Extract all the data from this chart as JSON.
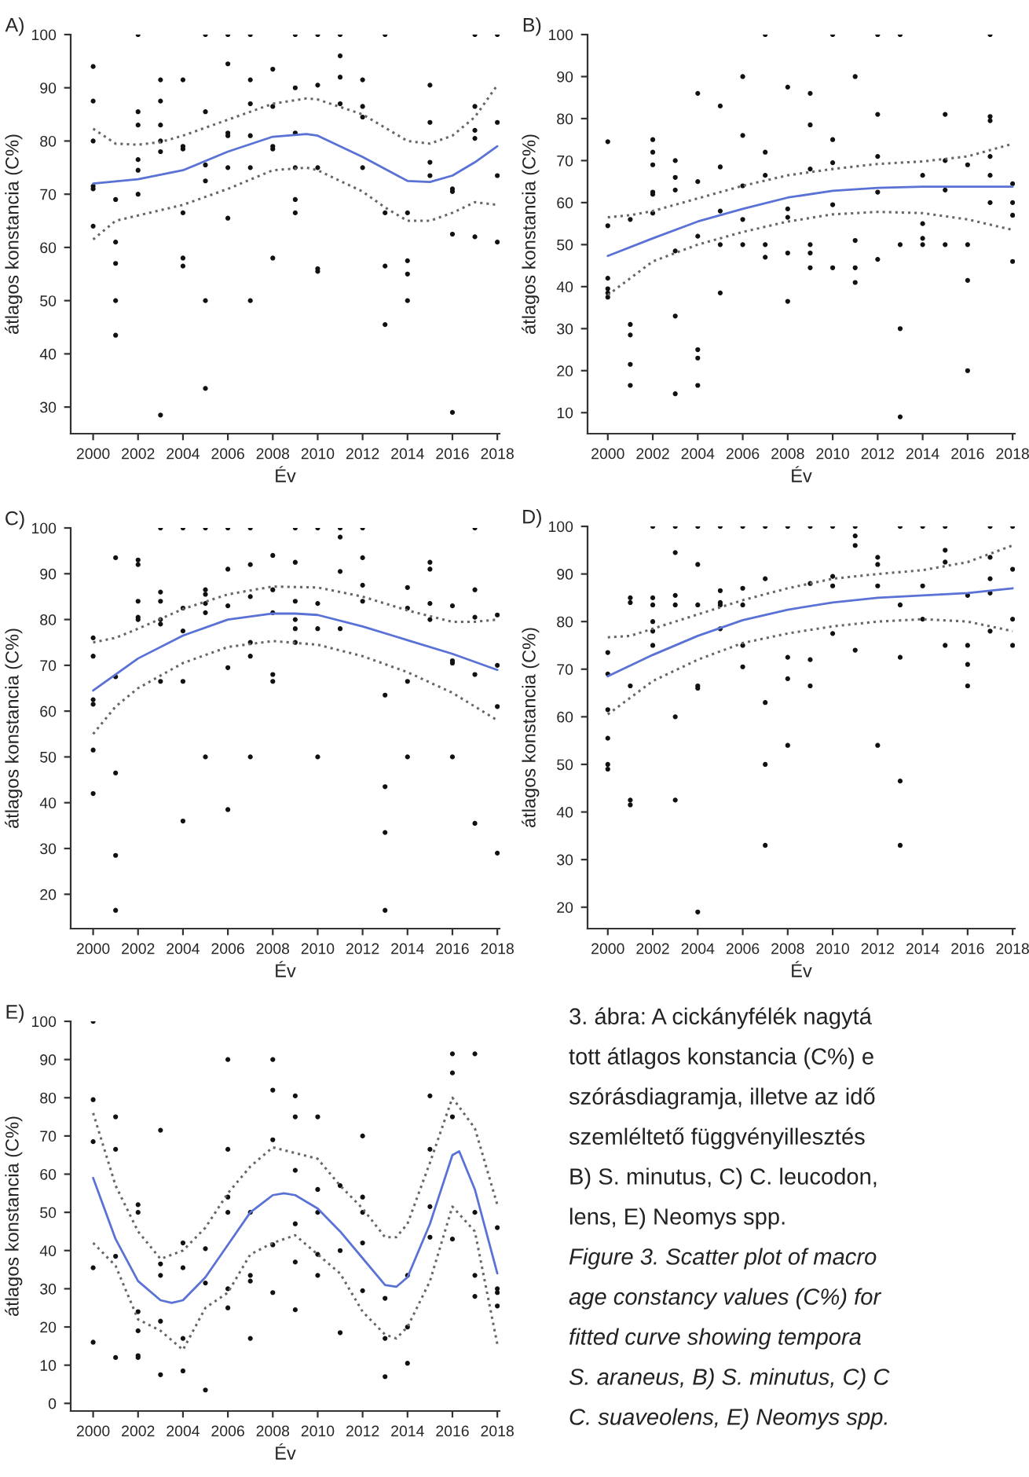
{
  "chart_data": [
    {
      "type": "scatter",
      "title": "A)",
      "xlabel": "Év",
      "ylabel": "átlagos konstancia (C%)",
      "xlim": [
        1999,
        2018.1
      ],
      "ylim": [
        25,
        100
      ],
      "xticks": [
        2000,
        2002,
        2004,
        2006,
        2008,
        2010,
        2012,
        2014,
        2016,
        2018
      ],
      "yticks": [
        30,
        40,
        50,
        60,
        70,
        80,
        90,
        100
      ],
      "series": [
        {
          "type": "scatter",
          "marker": "circle",
          "color": "#111111",
          "x": [
            2000,
            2000,
            2000,
            2000,
            2000,
            2000,
            2001,
            2001,
            2001,
            2001,
            2001,
            2002,
            2002,
            2002,
            2002,
            2002,
            2002,
            2003,
            2003,
            2003,
            2003,
            2003,
            2003,
            2004,
            2004,
            2004,
            2004,
            2004,
            2004,
            2005,
            2005,
            2005,
            2005,
            2005,
            2005,
            2006,
            2006,
            2006,
            2006,
            2006,
            2006,
            2007,
            2007,
            2007,
            2007,
            2007,
            2007,
            2008,
            2008,
            2008,
            2008,
            2008,
            2009,
            2009,
            2009,
            2009,
            2009,
            2009,
            2010,
            2010,
            2010,
            2010,
            2010,
            2011,
            2011,
            2011,
            2011,
            2012,
            2012,
            2012,
            2012,
            2013,
            2013,
            2013,
            2013,
            2014,
            2014,
            2014,
            2014,
            2015,
            2015,
            2015,
            2015,
            2016,
            2016,
            2016,
            2016,
            2017,
            2017,
            2017,
            2017,
            2017,
            2018,
            2018,
            2018,
            2018
          ],
          "values": [
            94,
            87.5,
            80,
            71.5,
            71,
            64,
            69,
            61,
            57,
            50,
            43.5,
            100,
            85.5,
            83,
            76.5,
            74.5,
            70,
            91.5,
            87.5,
            83,
            80,
            78,
            28.5,
            91.5,
            79,
            78.5,
            66.5,
            58,
            56.5,
            100,
            85.5,
            75.5,
            72.5,
            50,
            33.5,
            100,
            94.5,
            81.5,
            81,
            75,
            65.5,
            100,
            91.5,
            87,
            81,
            75,
            50,
            93.5,
            86.5,
            79,
            78.5,
            58,
            100,
            90,
            81.5,
            75,
            69,
            66.5,
            100,
            90.5,
            75,
            56,
            55.5,
            100,
            96,
            92,
            87,
            91.5,
            86.5,
            84.5,
            75,
            100,
            66.5,
            56.5,
            45.5,
            66.5,
            57.5,
            55,
            50,
            90.5,
            83.5,
            76,
            73.5,
            71,
            70.5,
            62.5,
            29,
            100,
            86.5,
            82,
            80.5,
            62,
            100,
            83.5,
            73.5,
            61
          ]
        },
        {
          "type": "line",
          "color": "#5a72d6",
          "line_style": "solid",
          "x": [
            2000,
            2002,
            2004,
            2006,
            2008,
            2009.5,
            2010,
            2012,
            2014,
            2015,
            2016,
            2017,
            2018
          ],
          "values": [
            72,
            72.8,
            74.5,
            78,
            80.8,
            81.3,
            81,
            77,
            72.5,
            72.3,
            73.5,
            76,
            79
          ]
        },
        {
          "type": "line",
          "color": "#666666",
          "line_style": "dotted",
          "x": [
            2000,
            2001,
            2002,
            2003,
            2004,
            2006,
            2008,
            2009.5,
            2010,
            2012,
            2014,
            2015,
            2016,
            2017,
            2018
          ],
          "values": [
            82.3,
            79.5,
            79.3,
            79.8,
            81,
            84,
            87,
            88,
            87.8,
            85,
            80,
            79.5,
            81,
            84.5,
            90.5
          ]
        },
        {
          "type": "line",
          "color": "#666666",
          "line_style": "dotted",
          "x": [
            2000,
            2001,
            2002,
            2004,
            2006,
            2008,
            2009.5,
            2010,
            2012,
            2013,
            2014,
            2015,
            2016,
            2017,
            2018
          ],
          "values": [
            61.5,
            65,
            66,
            68,
            71,
            74.5,
            75,
            74.5,
            70.5,
            67.5,
            65,
            65,
            66.5,
            68.5,
            68
          ]
        }
      ]
    },
    {
      "type": "scatter",
      "title": "B)",
      "xlabel": "Év",
      "ylabel": "átlagos konstancia (C%)",
      "xlim": [
        1999.1,
        2018.1
      ],
      "ylim": [
        5,
        100
      ],
      "xticks": [
        2000,
        2002,
        2004,
        2006,
        2008,
        2010,
        2012,
        2014,
        2016,
        2018
      ],
      "yticks": [
        10,
        20,
        30,
        40,
        50,
        60,
        70,
        80,
        90,
        100
      ],
      "series": [
        {
          "type": "scatter",
          "marker": "circle",
          "color": "#111111",
          "x": [
            2000,
            2000,
            2000,
            2000,
            2000,
            2000,
            2001,
            2001,
            2001,
            2001,
            2001,
            2002,
            2002,
            2002,
            2002,
            2002,
            2002,
            2003,
            2003,
            2003,
            2003,
            2003,
            2003,
            2004,
            2004,
            2004,
            2004,
            2004,
            2004,
            2005,
            2005,
            2005,
            2005,
            2005,
            2006,
            2006,
            2006,
            2006,
            2006,
            2007,
            2007,
            2007,
            2007,
            2007,
            2008,
            2008,
            2008,
            2008,
            2008,
            2009,
            2009,
            2009,
            2009,
            2009,
            2009,
            2010,
            2010,
            2010,
            2010,
            2010,
            2011,
            2011,
            2011,
            2011,
            2012,
            2012,
            2012,
            2012,
            2012,
            2013,
            2013,
            2013,
            2013,
            2014,
            2014,
            2014,
            2014,
            2015,
            2015,
            2015,
            2015,
            2016,
            2016,
            2016,
            2016,
            2017,
            2017,
            2017,
            2017,
            2017,
            2017,
            2018,
            2018,
            2018,
            2018
          ],
          "values": [
            74.5,
            54.5,
            42,
            39.5,
            38.5,
            37.5,
            56,
            31,
            28.5,
            21.5,
            16.5,
            75,
            72,
            69,
            62.5,
            62,
            57.5,
            70,
            66,
            63,
            48.5,
            33,
            14.5,
            86,
            65,
            52,
            25,
            23,
            16.5,
            83,
            68.5,
            58,
            50,
            38.5,
            90,
            76,
            64,
            56,
            50,
            100,
            72,
            66.5,
            50,
            47,
            87.5,
            58.5,
            56.5,
            48,
            36.5,
            86,
            78.5,
            68,
            50,
            48,
            44.5,
            100,
            75,
            69.5,
            59.5,
            44.5,
            90,
            51,
            44.5,
            41,
            100,
            81,
            71,
            62.5,
            46.5,
            100,
            50,
            30,
            9,
            66.5,
            55,
            51.5,
            50,
            81,
            70,
            63,
            50,
            69,
            50,
            41.5,
            20,
            100,
            80.5,
            79.5,
            71,
            66.5,
            60,
            64.5,
            60,
            57,
            46
          ]
        },
        {
          "type": "line",
          "color": "#5a72d6",
          "line_style": "solid",
          "x": [
            2000,
            2002,
            2004,
            2006,
            2008,
            2010,
            2012,
            2014,
            2016,
            2018
          ],
          "values": [
            47.3,
            51.5,
            55.5,
            58.5,
            61.2,
            62.8,
            63.5,
            63.8,
            63.8,
            63.8
          ]
        },
        {
          "type": "line",
          "color": "#666666",
          "line_style": "dotted",
          "x": [
            2000,
            2001,
            2002,
            2004,
            2006,
            2008,
            2010,
            2012,
            2014,
            2016,
            2018
          ],
          "values": [
            56.5,
            57,
            58,
            61,
            64,
            66.5,
            68,
            69.2,
            69.8,
            71,
            74
          ]
        },
        {
          "type": "line",
          "color": "#666666",
          "line_style": "dotted",
          "x": [
            2000,
            2001,
            2002,
            2004,
            2006,
            2008,
            2010,
            2012,
            2014,
            2016,
            2018
          ],
          "values": [
            38,
            42,
            46,
            50,
            53,
            55.5,
            57.2,
            57.8,
            57.5,
            56,
            53.5
          ]
        }
      ]
    },
    {
      "type": "scatter",
      "title": "C)",
      "xlabel": "Év",
      "ylabel": "átlagos konstancia (C%)",
      "xlim": [
        1999,
        2018.1
      ],
      "ylim": [
        12.5,
        100
      ],
      "xticks": [
        2000,
        2002,
        2004,
        2006,
        2008,
        2010,
        2012,
        2014,
        2016,
        2018
      ],
      "yticks": [
        20,
        30,
        40,
        50,
        60,
        70,
        80,
        90,
        100
      ],
      "series": [
        {
          "type": "scatter",
          "marker": "circle",
          "color": "#111111",
          "x": [
            2000,
            2000,
            2000,
            2000,
            2000,
            2000,
            2001,
            2001,
            2001,
            2001,
            2001,
            2002,
            2002,
            2002,
            2002,
            2002,
            2003,
            2003,
            2003,
            2003,
            2003,
            2003,
            2004,
            2004,
            2004,
            2004,
            2004,
            2005,
            2005,
            2005,
            2005,
            2005,
            2005,
            2006,
            2006,
            2006,
            2006,
            2006,
            2007,
            2007,
            2007,
            2007,
            2007,
            2007,
            2008,
            2008,
            2008,
            2008,
            2008,
            2009,
            2009,
            2009,
            2009,
            2009,
            2009,
            2010,
            2010,
            2010,
            2010,
            2011,
            2011,
            2011,
            2011,
            2012,
            2012,
            2012,
            2012,
            2013,
            2013,
            2013,
            2013,
            2014,
            2014,
            2014,
            2014,
            2015,
            2015,
            2015,
            2015,
            2016,
            2016,
            2016,
            2016,
            2017,
            2017,
            2017,
            2017,
            2017,
            2018,
            2018,
            2018,
            2018
          ],
          "values": [
            76,
            72,
            62.5,
            61.5,
            51.5,
            42,
            93.5,
            67.5,
            46.5,
            28.5,
            16.5,
            93,
            92,
            84,
            80.5,
            80,
            100,
            86,
            84,
            80,
            79,
            66.5,
            100,
            82.5,
            77.5,
            66.5,
            36,
            100,
            86.5,
            85.5,
            83.5,
            81.5,
            50,
            100,
            91,
            83,
            69.5,
            38.5,
            100,
            92,
            85,
            75,
            72,
            50,
            94,
            86.5,
            81.5,
            68,
            66.5,
            100,
            92.5,
            84,
            80,
            78,
            75,
            100,
            83.5,
            78,
            50,
            100,
            98,
            90.5,
            78,
            100,
            93.5,
            87.5,
            84,
            63.5,
            43.5,
            33.5,
            16.5,
            87,
            82.5,
            66.5,
            50,
            92.5,
            91,
            83.5,
            80,
            83,
            71,
            70.5,
            50,
            100,
            86.5,
            80.5,
            68,
            35.5,
            81,
            70,
            61,
            29
          ]
        },
        {
          "type": "line",
          "color": "#5a72d6",
          "line_style": "solid",
          "x": [
            2000,
            2002,
            2004,
            2006,
            2008,
            2009,
            2010,
            2012,
            2014,
            2016,
            2018
          ],
          "values": [
            64.5,
            71.5,
            76.5,
            80,
            81.3,
            81.3,
            81,
            78.5,
            75.5,
            72.5,
            69
          ]
        },
        {
          "type": "line",
          "color": "#666666",
          "line_style": "dotted",
          "x": [
            2000,
            2001,
            2002,
            2004,
            2006,
            2008,
            2010,
            2012,
            2014,
            2016,
            2017,
            2018
          ],
          "values": [
            75,
            76,
            78,
            82.3,
            85.5,
            87.2,
            87,
            85,
            82,
            79.5,
            79.5,
            80
          ]
        },
        {
          "type": "line",
          "color": "#666666",
          "line_style": "dotted",
          "x": [
            2000,
            2001,
            2002,
            2004,
            2006,
            2008,
            2010,
            2012,
            2014,
            2016,
            2018
          ],
          "values": [
            55,
            61,
            65,
            70.5,
            74,
            75.3,
            74.5,
            72,
            68.5,
            64,
            58
          ]
        }
      ]
    },
    {
      "type": "scatter",
      "title": "D)",
      "xlabel": "Év",
      "ylabel": "átlagos konstancia (C%)",
      "xlim": [
        1999.1,
        2018.1
      ],
      "ylim": [
        15.5,
        100
      ],
      "xticks": [
        2000,
        2002,
        2004,
        2006,
        2008,
        2010,
        2012,
        2014,
        2016,
        2018
      ],
      "yticks": [
        20,
        30,
        40,
        50,
        60,
        70,
        80,
        90,
        100
      ],
      "series": [
        {
          "type": "scatter",
          "marker": "circle",
          "color": "#111111",
          "x": [
            2000,
            2000,
            2000,
            2000,
            2000,
            2000,
            2001,
            2001,
            2001,
            2001,
            2001,
            2002,
            2002,
            2002,
            2002,
            2002,
            2002,
            2003,
            2003,
            2003,
            2003,
            2003,
            2003,
            2004,
            2004,
            2004,
            2004,
            2004,
            2004,
            2005,
            2005,
            2005,
            2005,
            2005,
            2006,
            2006,
            2006,
            2006,
            2006,
            2007,
            2007,
            2007,
            2007,
            2007,
            2008,
            2008,
            2008,
            2008,
            2009,
            2009,
            2009,
            2009,
            2010,
            2010,
            2010,
            2010,
            2011,
            2011,
            2011,
            2011,
            2012,
            2012,
            2012,
            2012,
            2013,
            2013,
            2013,
            2013,
            2013,
            2014,
            2014,
            2014,
            2015,
            2015,
            2015,
            2015,
            2016,
            2016,
            2016,
            2016,
            2017,
            2017,
            2017,
            2017,
            2017,
            2018,
            2018,
            2018,
            2018
          ],
          "values": [
            73.5,
            69,
            61.5,
            55.5,
            50,
            49,
            85,
            84,
            66.5,
            42.5,
            41.5,
            100,
            85,
            83.5,
            80,
            78,
            75,
            100,
            94.5,
            85.5,
            83.5,
            60,
            42.5,
            100,
            92,
            83.5,
            66.5,
            66,
            19,
            100,
            86.5,
            84,
            83.5,
            78.5,
            100,
            87,
            83.5,
            75,
            70.5,
            100,
            89,
            63,
            50,
            33,
            100,
            72.5,
            68,
            54,
            100,
            88,
            72,
            66.5,
            100,
            89.5,
            87.5,
            77.5,
            100,
            98,
            96,
            74,
            93.5,
            92,
            87.5,
            54,
            100,
            83.5,
            72.5,
            46.5,
            33,
            100,
            87.5,
            80.5,
            100,
            95,
            92.5,
            75,
            85.5,
            75,
            71,
            66.5,
            100,
            93.5,
            89,
            86,
            78,
            100,
            91,
            80.5,
            75
          ]
        },
        {
          "type": "line",
          "color": "#5a72d6",
          "line_style": "solid",
          "x": [
            2000,
            2002,
            2004,
            2006,
            2008,
            2010,
            2012,
            2014,
            2016,
            2018
          ],
          "values": [
            68.5,
            73,
            77,
            80.3,
            82.5,
            84,
            85,
            85.5,
            86,
            87
          ]
        },
        {
          "type": "line",
          "color": "#666666",
          "line_style": "dotted",
          "x": [
            2000,
            2001,
            2002,
            2004,
            2006,
            2008,
            2010,
            2012,
            2014,
            2016,
            2018
          ],
          "values": [
            76.7,
            77,
            78.5,
            81.5,
            84.5,
            87,
            89,
            90,
            90.8,
            92.5,
            96
          ]
        },
        {
          "type": "line",
          "color": "#666666",
          "line_style": "dotted",
          "x": [
            2000,
            2001,
            2002,
            2004,
            2006,
            2008,
            2010,
            2012,
            2014,
            2016,
            2018
          ],
          "values": [
            60.5,
            64,
            67.5,
            72,
            75.5,
            77.5,
            79,
            80,
            80.5,
            80,
            78
          ]
        }
      ]
    },
    {
      "type": "scatter",
      "title": "E)",
      "xlabel": "Év",
      "ylabel": "átlagos konstancia (C%)",
      "xlim": [
        1999,
        2018.1
      ],
      "ylim": [
        -2,
        100
      ],
      "xticks": [
        2000,
        2002,
        2004,
        2006,
        2008,
        2010,
        2012,
        2014,
        2016,
        2018
      ],
      "yticks": [
        0,
        10,
        20,
        30,
        40,
        50,
        60,
        70,
        80,
        90,
        100
      ],
      "series": [
        {
          "type": "scatter",
          "marker": "circle",
          "color": "#111111",
          "x": [
            2000,
            2000,
            2000,
            2000,
            2000,
            2001,
            2001,
            2001,
            2001,
            2002,
            2002,
            2002,
            2002,
            2002,
            2002,
            2003,
            2003,
            2003,
            2003,
            2003,
            2004,
            2004,
            2004,
            2004,
            2005,
            2005,
            2005,
            2006,
            2006,
            2006,
            2006,
            2006,
            2006,
            2007,
            2007,
            2007,
            2007,
            2008,
            2008,
            2008,
            2008,
            2008,
            2009,
            2009,
            2009,
            2009,
            2009,
            2009,
            2010,
            2010,
            2010,
            2010,
            2010,
            2011,
            2011,
            2011,
            2012,
            2012,
            2012,
            2012,
            2012,
            2013,
            2013,
            2013,
            2014,
            2014,
            2014,
            2015,
            2015,
            2015,
            2015,
            2016,
            2016,
            2016,
            2016,
            2017,
            2017,
            2017,
            2017,
            2018,
            2018,
            2018,
            2018
          ],
          "values": [
            100,
            79.5,
            68.5,
            35.5,
            16,
            75,
            66.5,
            38.5,
            12,
            52,
            50,
            24,
            19,
            12.5,
            12,
            71.5,
            36.5,
            33.5,
            21.5,
            7.5,
            42,
            35.5,
            17,
            8.5,
            40.5,
            31.5,
            3.5,
            90,
            66.5,
            54,
            50,
            30,
            25,
            50,
            33.5,
            32,
            17,
            90,
            82,
            69,
            41.5,
            29,
            80.5,
            75,
            61,
            47,
            37,
            24.5,
            75,
            56,
            50,
            39,
            33.5,
            57,
            40,
            18.5,
            70,
            54,
            50,
            42,
            29.5,
            27.5,
            17,
            7,
            33.5,
            20,
            10.5,
            80.5,
            66.5,
            51.5,
            43.5,
            91.5,
            86.5,
            75,
            43,
            91.5,
            50,
            33.5,
            28,
            46,
            30,
            29,
            25.5
          ]
        },
        {
          "type": "line",
          "color": "#5a72d6",
          "line_style": "solid",
          "x": [
            2000,
            2001,
            2002,
            2003,
            2003.5,
            2004,
            2005,
            2006,
            2007,
            2008,
            2008.5,
            2009,
            2010,
            2011,
            2012,
            2013,
            2013.5,
            2014,
            2015,
            2016,
            2016.3,
            2017,
            2018
          ],
          "values": [
            59,
            43,
            32,
            27,
            26.3,
            27,
            33,
            41.5,
            50,
            54.5,
            55,
            54.5,
            51,
            45,
            38,
            31,
            30.5,
            33,
            47,
            65,
            66,
            56,
            34
          ]
        },
        {
          "type": "line",
          "color": "#666666",
          "line_style": "dotted",
          "x": [
            2000,
            2001,
            2002,
            2003,
            2004,
            2005,
            2006,
            2007,
            2008,
            2009,
            2010,
            2011,
            2012,
            2013,
            2013.5,
            2014,
            2015,
            2016,
            2017,
            2018
          ],
          "values": [
            76,
            57,
            45,
            37.8,
            40,
            46,
            55,
            62,
            67,
            65.5,
            64,
            57,
            51,
            43.5,
            43.5,
            47,
            63,
            80,
            72,
            52
          ]
        },
        {
          "type": "line",
          "color": "#666666",
          "line_style": "dotted",
          "x": [
            2000,
            2001,
            2002,
            2003,
            2004,
            2005,
            2006,
            2007,
            2008,
            2009,
            2010,
            2011,
            2012,
            2013,
            2013.5,
            2014,
            2015,
            2016,
            2017,
            2018
          ],
          "values": [
            42,
            36,
            22,
            19,
            14,
            25,
            29,
            39,
            42,
            44,
            39,
            34,
            24,
            18,
            17,
            20,
            32,
            51.5,
            45,
            15.5
          ]
        }
      ]
    },
    {
      "type": "other",
      "annotations": [
        "3. ábra: A cickányfélék nagytá",
        "tott átlagos konstancia (C%) e",
        "szórásdiagramja, illetve az idő",
        "szemléltető függvényillesztés",
        "B) S. minutus, C) C. leucodon,",
        "lens, E) Neomys spp.",
        "Figure 3. Scatter plot of macro",
        "age constancy values (C%) for",
        "fitted curve showing tempora",
        "S. araneus, B) S. minutus, C) C",
        "C. suaveolens, E) Neomys spp."
      ]
    }
  ]
}
